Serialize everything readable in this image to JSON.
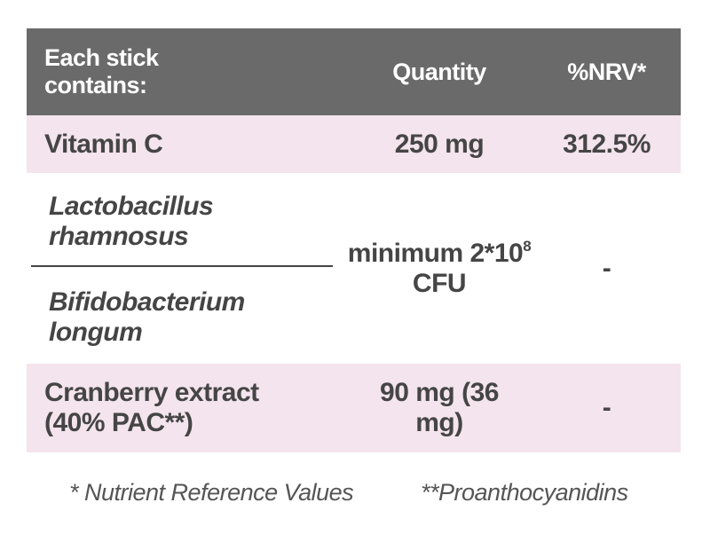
{
  "header": {
    "name": "Each stick contains:",
    "quantity": "Quantity",
    "nrv": "%NRV*"
  },
  "rows": [
    {
      "name": "Vitamin C",
      "quantity": "250 mg",
      "nrv": "312.5%"
    },
    {
      "names": [
        "Lactobacillus rhamnosus",
        "Bifidobacterium longum"
      ],
      "quantity": {
        "text": "minimum 2*10",
        "superscript": "8",
        "suffix": " CFU"
      },
      "nrv": "-"
    },
    {
      "name": "Cranberry extract (40% PAC**)",
      "quantity": "90 mg (36 mg)",
      "nrv": "-"
    }
  ],
  "footnotes": [
    "* Nutrient Reference Values",
    "**Proanthocyanidins"
  ]
}
